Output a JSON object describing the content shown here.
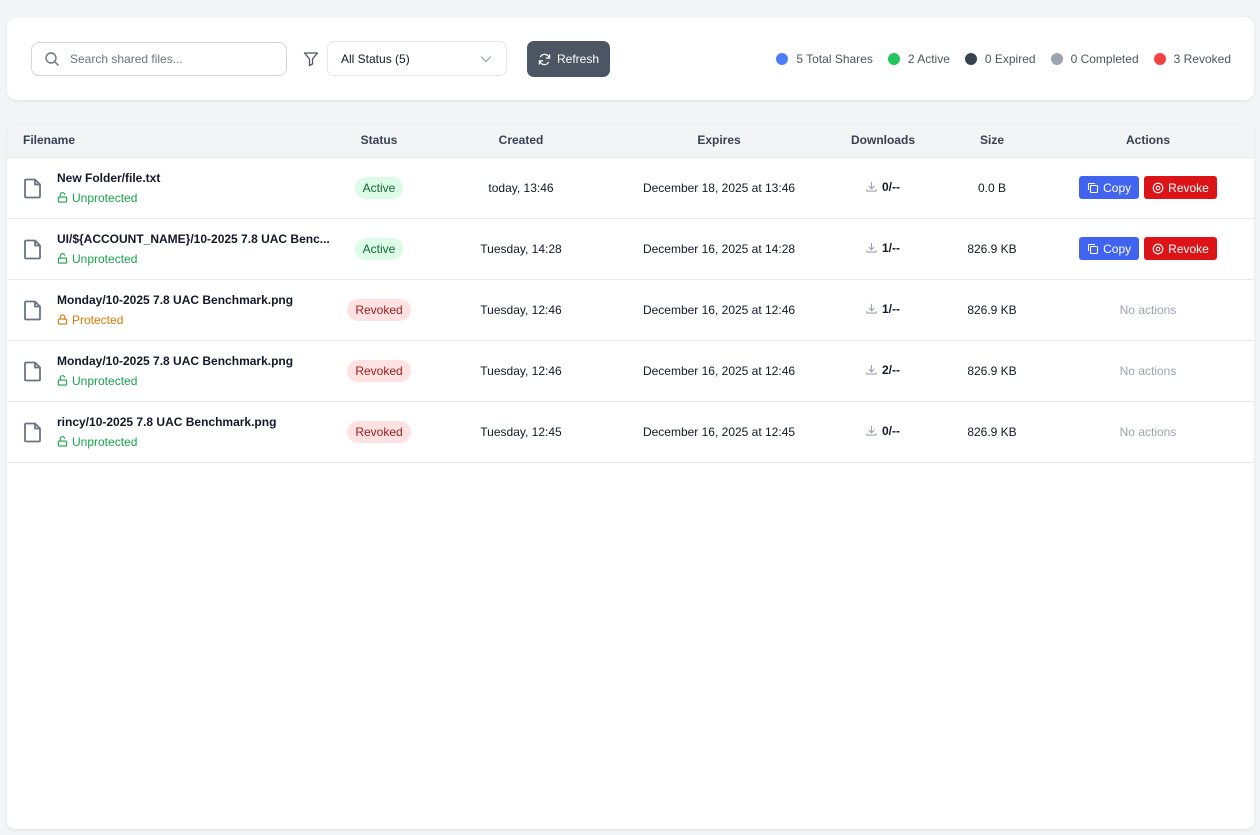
{
  "toolbar": {
    "search_placeholder": "Search shared files...",
    "status_filter": "All Status (5)",
    "refresh_label": "Refresh"
  },
  "stats": [
    {
      "label": "5 Total Shares",
      "color": "#4f7cf7"
    },
    {
      "label": "2 Active",
      "color": "#22c55e"
    },
    {
      "label": "0 Expired",
      "color": "#374151"
    },
    {
      "label": "0 Completed",
      "color": "#9ca3af"
    },
    {
      "label": "3 Revoked",
      "color": "#ef4444"
    }
  ],
  "table": {
    "headers": [
      "Filename",
      "Status",
      "Created",
      "Expires",
      "Downloads",
      "Size",
      "Actions"
    ],
    "copy_label": "Copy",
    "revoke_label": "Revoke",
    "no_actions_label": "No actions",
    "rows": [
      {
        "filename": "New Folder/file.txt",
        "protection": "Unprotected",
        "status": "Active",
        "created": "today, 13:46",
        "expires": "December 18, 2025 at 13:46",
        "downloads": "0/--",
        "size": "0.0 B"
      },
      {
        "filename": "UI/${ACCOUNT_NAME}/10-2025 7.8 UAC Benc...",
        "protection": "Unprotected",
        "status": "Active",
        "created": "Tuesday, 14:28",
        "expires": "December 16, 2025 at 14:28",
        "downloads": "1/--",
        "size": "826.9 KB"
      },
      {
        "filename": "Monday/10-2025 7.8 UAC Benchmark.png",
        "protection": "Protected",
        "status": "Revoked",
        "created": "Tuesday, 12:46",
        "expires": "December 16, 2025 at 12:46",
        "downloads": "1/--",
        "size": "826.9 KB"
      },
      {
        "filename": "Monday/10-2025 7.8 UAC Benchmark.png",
        "protection": "Unprotected",
        "status": "Revoked",
        "created": "Tuesday, 12:46",
        "expires": "December 16, 2025 at 12:46",
        "downloads": "2/--",
        "size": "826.9 KB"
      },
      {
        "filename": "rincy/10-2025 7.8 UAC Benchmark.png",
        "protection": "Unprotected",
        "status": "Revoked",
        "created": "Tuesday, 12:45",
        "expires": "December 16, 2025 at 12:45",
        "downloads": "0/--",
        "size": "826.9 KB"
      }
    ]
  }
}
